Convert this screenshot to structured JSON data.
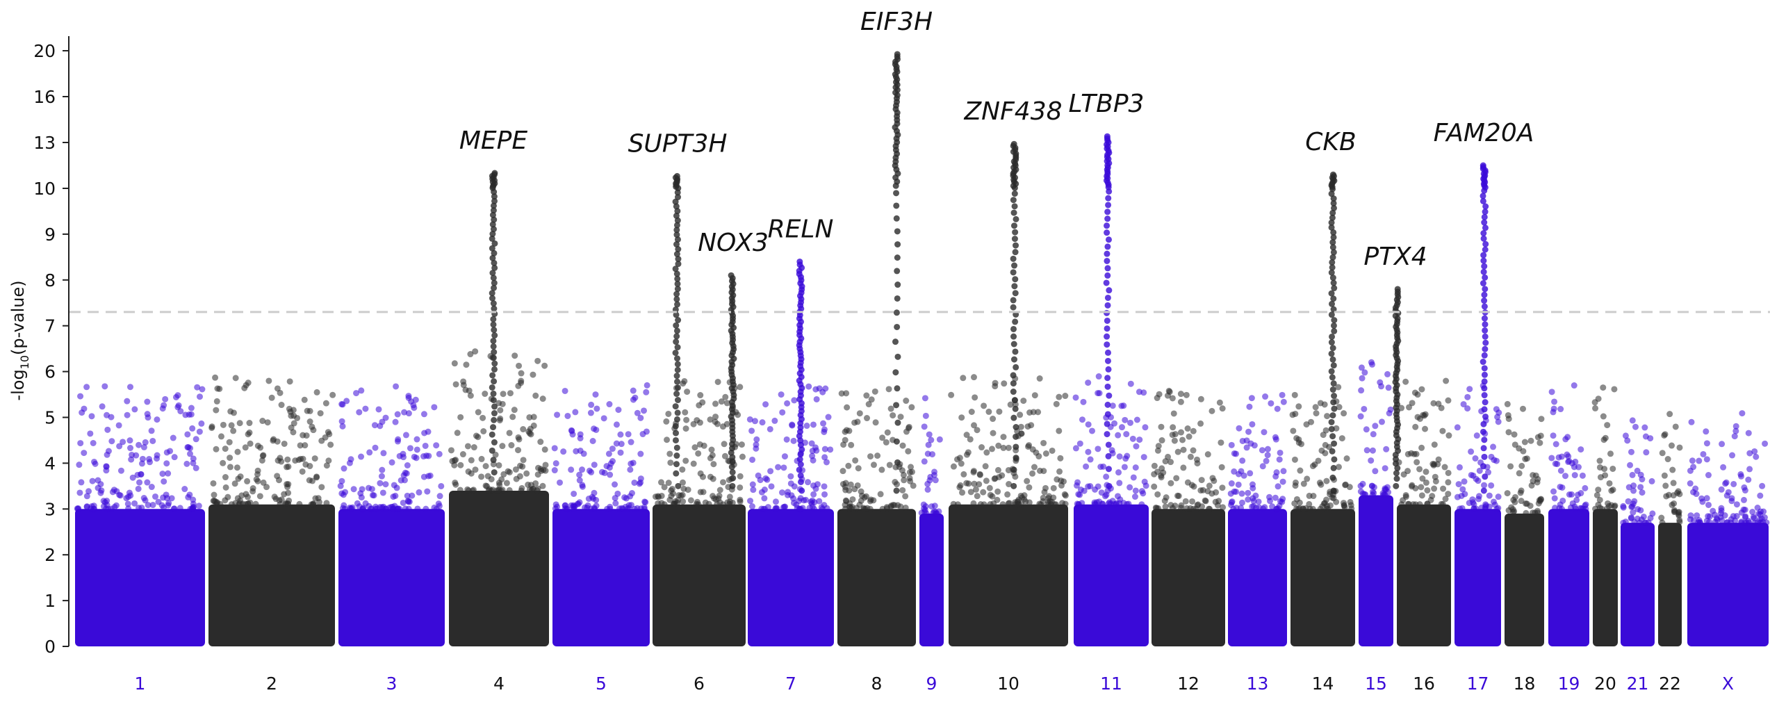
{
  "chart_data": {
    "type": "scatter",
    "title": "",
    "xlabel": "",
    "ylabel": "-log10(p-value)",
    "ylabel_parts": {
      "prefix": "-log",
      "subscript": "10",
      "suffix": "(p-value)"
    },
    "y_ticks": [
      "0",
      "1",
      "2",
      "3",
      "4",
      "5",
      "6",
      "7",
      "8",
      "9",
      "10",
      "13",
      "16",
      "20"
    ],
    "y_scale_note": "compressed above 10",
    "significance_threshold": 7.3,
    "colors": {
      "odd": "#3a0ad8",
      "even": "#2b2b2b",
      "threshold": "#cccccc"
    },
    "chromosomes": [
      {
        "label": "1",
        "color": "odd",
        "peak": 6.2,
        "bulk": 3.9
      },
      {
        "label": "2",
        "color": "even",
        "peak": 6.3,
        "bulk": 4.0
      },
      {
        "label": "3",
        "color": "odd",
        "peak": 6.1,
        "bulk": 3.9
      },
      {
        "label": "4",
        "color": "even",
        "peak": 11.0,
        "bulk": 4.3
      },
      {
        "label": "5",
        "color": "odd",
        "peak": 6.5,
        "bulk": 3.9
      },
      {
        "label": "6",
        "color": "even",
        "peak": 10.8,
        "bulk": 4.0
      },
      {
        "label": "7",
        "color": "odd",
        "peak": 8.4,
        "bulk": 3.9
      },
      {
        "label": "8",
        "color": "even",
        "peak": 19.7,
        "bulk": 3.9
      },
      {
        "label": "9",
        "color": "odd",
        "peak": 5.9,
        "bulk": 3.8
      },
      {
        "label": "10",
        "color": "even",
        "peak": 12.9,
        "bulk": 4.0
      },
      {
        "label": "11",
        "color": "odd",
        "peak": 13.4,
        "bulk": 4.0
      },
      {
        "label": "12",
        "color": "even",
        "peak": 5.5,
        "bulk": 3.9
      },
      {
        "label": "13",
        "color": "odd",
        "peak": 6.0,
        "bulk": 3.9
      },
      {
        "label": "14",
        "color": "even",
        "peak": 10.9,
        "bulk": 3.9
      },
      {
        "label": "15",
        "color": "odd",
        "peak": 5.8,
        "bulk": 4.2
      },
      {
        "label": "16",
        "color": "even",
        "peak": 7.8,
        "bulk": 4.0
      },
      {
        "label": "17",
        "color": "odd",
        "peak": 11.5,
        "bulk": 3.9
      },
      {
        "label": "18",
        "color": "even",
        "peak": 5.0,
        "bulk": 3.8
      },
      {
        "label": "19",
        "color": "odd",
        "peak": 5.8,
        "bulk": 3.9
      },
      {
        "label": "20",
        "color": "even",
        "peak": 6.3,
        "bulk": 3.9
      },
      {
        "label": "21",
        "color": "odd",
        "peak": 4.8,
        "bulk": 3.6
      },
      {
        "label": "22",
        "color": "even",
        "peak": 5.2,
        "bulk": 3.6
      },
      {
        "label": "X",
        "color": "odd",
        "peak": 5.1,
        "bulk": 3.6
      }
    ],
    "annotations": [
      {
        "gene": "MEPE",
        "chromosome": "4",
        "value": 11.0
      },
      {
        "gene": "SUPT3H",
        "chromosome": "6",
        "value": 10.8
      },
      {
        "gene": "NOX3",
        "chromosome": "6",
        "value": 8.1
      },
      {
        "gene": "RELN",
        "chromosome": "7",
        "value": 8.4
      },
      {
        "gene": "EIF3H",
        "chromosome": "8",
        "value": 19.7
      },
      {
        "gene": "ZNF438",
        "chromosome": "10",
        "value": 12.9
      },
      {
        "gene": "LTBP3",
        "chromosome": "11",
        "value": 13.4
      },
      {
        "gene": "CKB",
        "chromosome": "14",
        "value": 10.9
      },
      {
        "gene": "PTX4",
        "chromosome": "16",
        "value": 7.8
      },
      {
        "gene": "FAM20A",
        "chromosome": "17",
        "value": 11.5
      }
    ]
  }
}
